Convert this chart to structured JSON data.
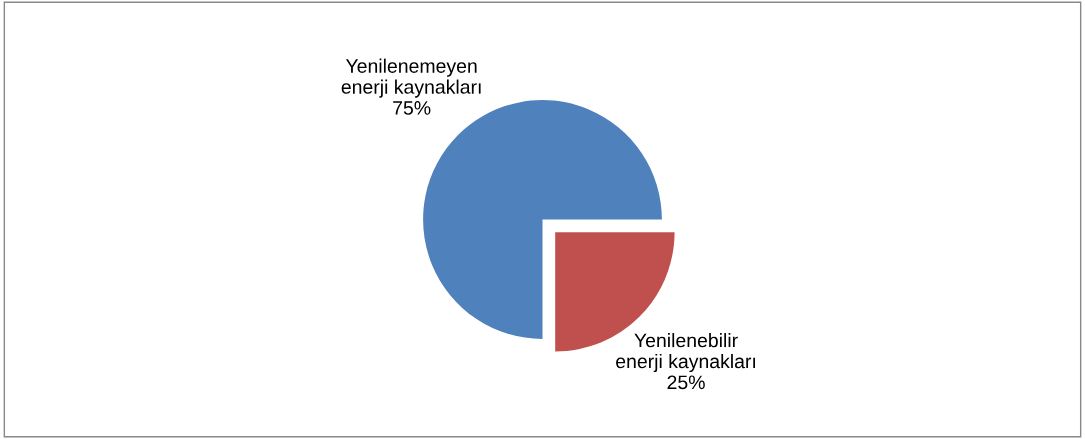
{
  "chart_data": {
    "type": "pie",
    "categories": [
      "Yenilenemeyen enerji kaynakları",
      "Yenilenebilir enerji kaynakları"
    ],
    "values": [
      75,
      25
    ],
    "value_labels": [
      "75%",
      "25%"
    ],
    "colors": [
      "#4f81bd",
      "#c0504d"
    ],
    "legend": false
  }
}
